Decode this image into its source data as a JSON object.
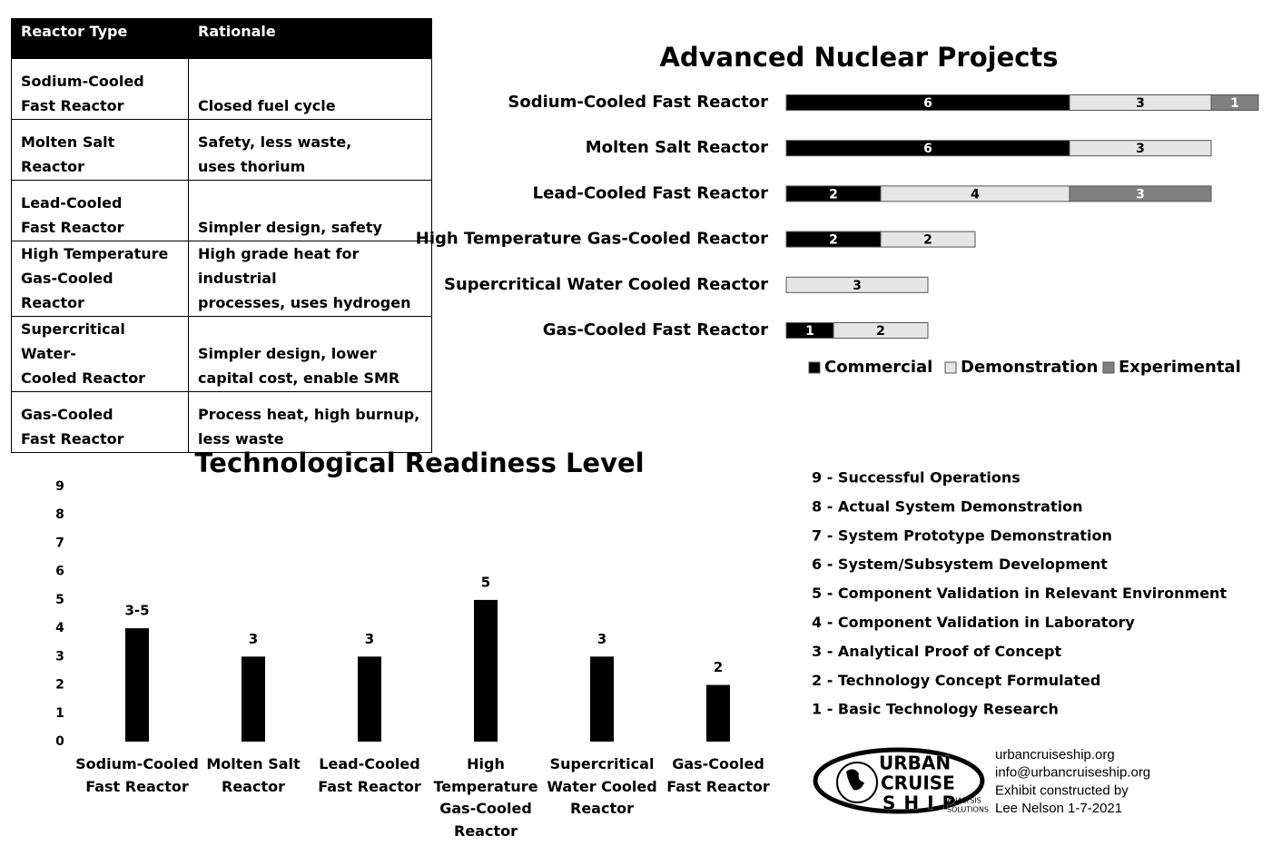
{
  "table": {
    "header": [
      "Reactor Type",
      "Rationale"
    ],
    "rows": [
      [
        "Sodium-Cooled\nFast Reactor",
        "Closed fuel cycle"
      ],
      [
        "Molten Salt Reactor",
        "Safety, less waste,\nuses thorium"
      ],
      [
        "Lead-Cooled\nFast Reactor",
        "Simpler design, safety"
      ],
      [
        "High Temperature\nGas-Cooled Reactor",
        "High grade heat for industrial\nprocesses, uses hydrogen"
      ],
      [
        "Supercritical Water-\nCooled Reactor",
        "Simpler design, lower\ncapital cost, enable SMR"
      ],
      [
        "Gas-Cooled\nFast Reactor",
        "Process heat, high burnup,\nless waste"
      ]
    ]
  },
  "chart_data": [
    {
      "type": "hbar_stacked",
      "title": "Advanced Nuclear Projects",
      "categories": [
        "Sodium-Cooled Fast Reactor",
        "Molten Salt Reactor",
        "Lead-Cooled Fast Reactor",
        "High Temperature Gas-Cooled Reactor",
        "Supercritical Water Cooled Reactor",
        "Gas-Cooled Fast Reactor"
      ],
      "series": [
        {
          "name": "Commercial",
          "color": "#000000",
          "label_color": "#ffffff",
          "values": [
            6,
            6,
            2,
            2,
            null,
            1
          ]
        },
        {
          "name": "Demonstration",
          "color": "#e6e6e6",
          "label_color": "#000000",
          "values": [
            3,
            3,
            4,
            2,
            3,
            2
          ]
        },
        {
          "name": "Experimental",
          "color": "#808080",
          "label_color": "#ffffff",
          "values": [
            1,
            null,
            3,
            null,
            null,
            null
          ]
        }
      ],
      "legend": "bottom"
    },
    {
      "type": "bar",
      "title": "Technological Readiness Level",
      "categories": [
        "Sodium-Cooled\nFast Reactor",
        "Molten Salt\nReactor",
        "Lead-Cooled\nFast Reactor",
        "High\nTemperature\nGas-Cooled\nReactor",
        "Supercritical\nWater Cooled\nReactor",
        "Gas-Cooled\nFast Reactor"
      ],
      "values": [
        4,
        3,
        3,
        5,
        3,
        2
      ],
      "value_labels": [
        "3-5",
        "3",
        "3",
        "5",
        "3",
        "2"
      ],
      "color": "#000000",
      "ylim": [
        0,
        9
      ],
      "yticks": [
        0,
        1,
        2,
        3,
        4,
        5,
        6,
        7,
        8,
        9
      ],
      "grid": false
    }
  ],
  "levels": [
    "9 - Successful Operations",
    "8 - Actual System Demonstration",
    "7 -  System Prototype Demonstration",
    "6 - System/Subsystem Development",
    "5 - Component Validation in Relevant Environment",
    "4 - Component Validation in Laboratory",
    "3 - Analytical Proof of Concept",
    "2 - Technology Concept Formulated",
    "1 - Basic Technology Research"
  ],
  "logo": {
    "lines": [
      "URBAN",
      "CRUISE",
      "SHIP"
    ],
    "tagline": [
      "ANALYSIS",
      "SOLUTIONS"
    ]
  },
  "contact": [
    "urbancruiseship.org",
    "info@urbancruiseship.org",
    "Exhibit constructed by",
    "Lee Nelson 1-7-2021"
  ]
}
